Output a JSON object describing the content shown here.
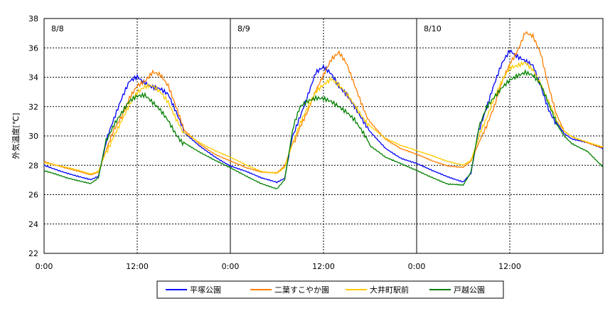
{
  "chart_data": {
    "type": "line",
    "ylabel": "外気温度[℃]",
    "ylim": [
      22,
      38
    ],
    "y_ticks": [
      "22",
      "24",
      "26",
      "28",
      "30",
      "32",
      "34",
      "36",
      "38"
    ],
    "xlim_hours": [
      0,
      72
    ],
    "x_ticks": [
      {
        "hour": 0,
        "label": "0:00"
      },
      {
        "hour": 12,
        "label": "12:00"
      },
      {
        "hour": 24,
        "label": "0:00"
      },
      {
        "hour": 36,
        "label": "12:00"
      },
      {
        "hour": 48,
        "label": "0:00"
      },
      {
        "hour": 60,
        "label": "12:00"
      }
    ],
    "day_labels": [
      {
        "hour": 24,
        "label": "8/8"
      },
      {
        "hour": 48,
        "label": "8/9"
      },
      {
        "hour": 72,
        "label": "8/10"
      }
    ],
    "grid": {
      "horizontal_dotted": true,
      "vertical_dotted_at_noon": true,
      "vertical_solid_at_midnight": true
    },
    "legend_position": "bottom",
    "series": [
      {
        "name": "平塚公園",
        "color": "#0000ff",
        "x": [
          0,
          3,
          6,
          7,
          8,
          9,
          10,
          11,
          12,
          13,
          14,
          15,
          16,
          17,
          18,
          20,
          22,
          24,
          26,
          28,
          30,
          31,
          32,
          33,
          34,
          35,
          36,
          37,
          38,
          39,
          40,
          41,
          42,
          44,
          46,
          48,
          50,
          52,
          54,
          55,
          56,
          57,
          58,
          59,
          60,
          61,
          62,
          63,
          64,
          65,
          66,
          67,
          68,
          70,
          72
        ],
        "y": [
          28.0,
          27.5,
          27.0,
          27.2,
          29.5,
          31.0,
          32.5,
          33.8,
          34.2,
          33.8,
          33.5,
          33.3,
          32.8,
          31.5,
          30.2,
          29.3,
          28.6,
          28.0,
          27.6,
          27.1,
          26.8,
          27.1,
          30.0,
          31.5,
          33.0,
          34.5,
          34.8,
          34.2,
          33.2,
          32.6,
          31.8,
          31.0,
          30.3,
          29.2,
          28.5,
          28.1,
          27.6,
          27.2,
          26.9,
          27.5,
          30.5,
          32.0,
          33.5,
          34.8,
          35.6,
          35.2,
          35.0,
          34.8,
          33.5,
          32.0,
          31.0,
          30.2,
          29.8,
          29.5,
          29.1
        ]
      },
      {
        "name": "二葉すこやか園",
        "color": "#ff7f00",
        "x": [
          0,
          3,
          6,
          7,
          8,
          9,
          10,
          11,
          12,
          13,
          14,
          15,
          16,
          17,
          18,
          20,
          22,
          24,
          26,
          28,
          30,
          31,
          32,
          33,
          34,
          35,
          36,
          37,
          38,
          39,
          40,
          41,
          42,
          44,
          46,
          48,
          50,
          52,
          54,
          55,
          56,
          57,
          58,
          59,
          60,
          61,
          62,
          63,
          64,
          65,
          66,
          67,
          68,
          70,
          72
        ],
        "y": [
          28.3,
          27.8,
          27.3,
          27.5,
          29.0,
          30.5,
          31.5,
          32.8,
          33.6,
          33.8,
          34.3,
          34.0,
          33.2,
          31.8,
          30.4,
          29.5,
          28.8,
          28.3,
          27.8,
          27.5,
          27.5,
          28.0,
          29.5,
          30.8,
          31.8,
          33.0,
          34.0,
          35.0,
          35.5,
          34.8,
          33.5,
          32.2,
          31.0,
          29.8,
          29.1,
          28.7,
          28.3,
          28.0,
          27.9,
          28.3,
          29.5,
          30.5,
          31.8,
          33.5,
          34.8,
          35.8,
          37.2,
          37.0,
          35.8,
          33.5,
          31.5,
          30.3,
          29.9,
          29.5,
          29.2
        ]
      },
      {
        "name": "大井町駅前",
        "color": "#ffcc00",
        "x": [
          0,
          3,
          6,
          7,
          8,
          9,
          10,
          11,
          12,
          13,
          14,
          15,
          16,
          17,
          18,
          20,
          22,
          24,
          26,
          28,
          30,
          31,
          32,
          33,
          34,
          35,
          36,
          37,
          38,
          39,
          40,
          41,
          42,
          44,
          46,
          48,
          50,
          52,
          54,
          55,
          56,
          57,
          58,
          59,
          60,
          61,
          62,
          63,
          64,
          65,
          66,
          67,
          68,
          70,
          72
        ],
        "y": [
          28.2,
          27.8,
          27.4,
          27.6,
          29.0,
          30.2,
          31.2,
          32.2,
          32.9,
          33.2,
          33.2,
          32.8,
          32.2,
          31.2,
          30.3,
          29.6,
          29.0,
          28.5,
          28.0,
          27.6,
          27.5,
          27.9,
          29.5,
          30.8,
          31.8,
          32.8,
          33.3,
          33.8,
          33.5,
          33.0,
          32.3,
          31.5,
          30.7,
          29.8,
          29.3,
          29.0,
          28.7,
          28.3,
          28.0,
          28.3,
          29.8,
          31.0,
          32.5,
          33.8,
          34.8,
          35.0,
          35.2,
          34.6,
          33.5,
          32.2,
          31.0,
          30.3,
          29.9,
          29.6,
          29.3
        ]
      },
      {
        "name": "戸越公園",
        "color": "#008000",
        "x": [
          0,
          3,
          6,
          7,
          8,
          9,
          10,
          11,
          12,
          13,
          14,
          15,
          16,
          17,
          18,
          20,
          22,
          24,
          26,
          28,
          30,
          31,
          32,
          33,
          34,
          35,
          36,
          37,
          38,
          39,
          40,
          41,
          42,
          44,
          46,
          48,
          50,
          52,
          54,
          55,
          56,
          57,
          58,
          59,
          60,
          61,
          62,
          63,
          64,
          65,
          66,
          67,
          68,
          70,
          72
        ],
        "y": [
          27.6,
          27.1,
          26.8,
          27.2,
          29.8,
          30.8,
          31.5,
          32.2,
          32.5,
          32.6,
          32.2,
          31.8,
          31.2,
          30.3,
          29.6,
          28.9,
          28.3,
          27.8,
          27.3,
          26.8,
          26.4,
          27.0,
          30.3,
          31.8,
          32.2,
          32.5,
          32.6,
          32.5,
          32.2,
          31.8,
          31.2,
          30.3,
          29.3,
          28.5,
          28.1,
          27.7,
          27.2,
          26.7,
          26.6,
          27.5,
          30.5,
          32.0,
          32.8,
          33.5,
          34.0,
          34.2,
          34.3,
          34.0,
          33.3,
          32.0,
          30.8,
          30.0,
          29.5,
          29.0,
          27.9
        ]
      }
    ]
  }
}
